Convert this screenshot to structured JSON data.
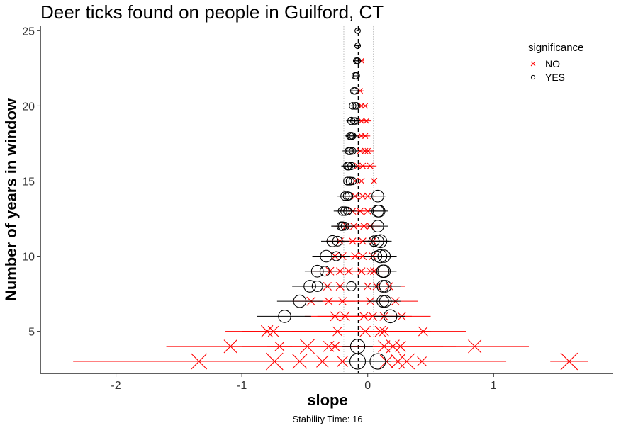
{
  "chart_data": {
    "type": "scatter",
    "title": "Deer ticks found on people in Guilford, CT",
    "xlabel": "slope",
    "ylabel": "Number of years in window",
    "caption": "Stability Time: 16",
    "xlim": [
      -2.6,
      1.95
    ],
    "ylim": [
      2.2,
      25.3
    ],
    "xticks": [
      -2,
      -1,
      0,
      1
    ],
    "xtick_labels": [
      "-2",
      "-1",
      "0",
      "1"
    ],
    "yticks": [
      5,
      10,
      15,
      20,
      25
    ],
    "ytick_labels": [
      "5",
      "10",
      "15",
      "20",
      "25"
    ],
    "reference_lines": {
      "dashed": -0.075,
      "dotted": [
        -0.19,
        0.045
      ]
    },
    "grid": false,
    "legend": {
      "title": "significance",
      "position": "top-right",
      "entries": [
        {
          "label": "NO",
          "marker": "x",
          "color": "#ff0000"
        },
        {
          "label": "YES",
          "marker": "o",
          "color": "#000000"
        }
      ]
    },
    "series": [
      {
        "name": "NO",
        "color": "#ff0000",
        "marker": "x",
        "points": [
          [
            -1.34,
            3,
            1.0,
            -2.34,
            -0.34
          ],
          [
            -0.74,
            3,
            1.1,
            -1.74,
            0.26
          ],
          [
            -0.54,
            3,
            0.9,
            -1.34,
            0.26
          ],
          [
            -0.36,
            3,
            0.7,
            -1.0,
            0.28
          ],
          [
            -0.2,
            3,
            0.6,
            -0.8,
            0.4
          ],
          [
            0.15,
            3,
            0.8,
            -0.6,
            0.9
          ],
          [
            0.24,
            3,
            0.9,
            -0.5,
            1.0
          ],
          [
            0.31,
            3,
            1.0,
            -0.4,
            1.1
          ],
          [
            0.43,
            3,
            0.5,
            -0.1,
            1.0
          ],
          [
            1.6,
            3,
            1.1,
            1.45,
            1.75
          ],
          [
            -1.09,
            4,
            0.8,
            -1.6,
            -0.6
          ],
          [
            -0.7,
            4,
            0.5,
            -1.1,
            -0.3
          ],
          [
            -0.48,
            4,
            0.9,
            -1.0,
            0.0
          ],
          [
            -0.31,
            4,
            0.6,
            -0.8,
            0.2
          ],
          [
            -0.26,
            4,
            0.5,
            -0.7,
            0.2
          ],
          [
            0.13,
            4,
            0.7,
            -0.3,
            0.6
          ],
          [
            0.2,
            4,
            0.8,
            -0.2,
            0.7
          ],
          [
            0.26,
            4,
            0.6,
            -0.2,
            0.8
          ],
          [
            0.85,
            4,
            0.8,
            0.3,
            1.28
          ],
          [
            -0.8,
            5,
            0.7,
            -1.13,
            -0.3
          ],
          [
            -0.75,
            5,
            0.6,
            -1.0,
            -0.2
          ],
          [
            -0.24,
            5,
            0.5,
            -0.6,
            0.2
          ],
          [
            -0.02,
            5,
            0.6,
            -0.3,
            0.3
          ],
          [
            0.1,
            5,
            0.6,
            -0.2,
            0.4
          ],
          [
            0.13,
            5,
            0.5,
            -0.2,
            0.5
          ],
          [
            0.44,
            5,
            0.5,
            0.1,
            0.78
          ],
          [
            -0.26,
            6,
            0.5,
            -0.5,
            0.1
          ],
          [
            -0.18,
            6,
            0.5,
            -0.4,
            0.15
          ],
          [
            -0.03,
            6,
            0.45,
            -0.3,
            0.2
          ],
          [
            0.04,
            6,
            0.45,
            -0.2,
            0.25
          ],
          [
            0.13,
            6,
            0.45,
            -0.1,
            0.35
          ],
          [
            0.27,
            6,
            0.4,
            0.0,
            0.5
          ],
          [
            -0.45,
            7,
            0.45,
            -0.6,
            -0.2
          ],
          [
            -0.31,
            7,
            0.4,
            -0.5,
            -0.1
          ],
          [
            -0.2,
            7,
            0.4,
            -0.4,
            0.0
          ],
          [
            0.02,
            7,
            0.4,
            -0.2,
            0.2
          ],
          [
            0.22,
            7,
            0.4,
            0.05,
            0.4
          ],
          [
            -0.32,
            8,
            0.4,
            -0.5,
            -0.15
          ],
          [
            -0.22,
            8,
            0.4,
            -0.4,
            -0.05
          ],
          [
            0.0,
            8,
            0.35,
            -0.2,
            0.2
          ],
          [
            0.07,
            8,
            0.35,
            -0.1,
            0.25
          ],
          [
            0.17,
            8,
            0.35,
            0.0,
            0.3
          ],
          [
            -0.3,
            9,
            0.4,
            -0.45,
            -0.15
          ],
          [
            -0.22,
            9,
            0.35,
            -0.35,
            -0.05
          ],
          [
            -0.15,
            9,
            0.35,
            -0.3,
            0.0
          ],
          [
            -0.05,
            9,
            0.35,
            -0.2,
            0.1
          ],
          [
            0.02,
            9,
            0.35,
            -0.1,
            0.15
          ],
          [
            0.05,
            9,
            0.35,
            -0.1,
            0.18
          ],
          [
            -0.26,
            10,
            0.35,
            -0.38,
            -0.12
          ],
          [
            -0.2,
            10,
            0.35,
            -0.32,
            -0.07
          ],
          [
            -0.1,
            10,
            0.35,
            -0.22,
            0.02
          ],
          [
            -0.04,
            10,
            0.35,
            -0.16,
            0.08
          ],
          [
            0.04,
            10,
            0.35,
            -0.08,
            0.14
          ],
          [
            -0.22,
            11,
            0.3,
            -0.33,
            -0.1
          ],
          [
            -0.12,
            11,
            0.3,
            -0.23,
            0.0
          ],
          [
            -0.04,
            11,
            0.3,
            -0.15,
            0.06
          ],
          [
            0.04,
            11,
            0.3,
            -0.06,
            0.14
          ],
          [
            -0.17,
            12,
            0.3,
            -0.27,
            -0.07
          ],
          [
            -0.11,
            12,
            0.3,
            -0.2,
            -0.02
          ],
          [
            -0.03,
            12,
            0.3,
            -0.12,
            0.05
          ],
          [
            0.02,
            12,
            0.3,
            -0.06,
            0.1
          ],
          [
            -0.12,
            13,
            0.3,
            -0.22,
            -0.03
          ],
          [
            -0.06,
            13,
            0.3,
            -0.14,
            0.02
          ],
          [
            0.0,
            13,
            0.3,
            -0.08,
            0.07
          ],
          [
            -0.1,
            14,
            0.28,
            -0.18,
            -0.02
          ],
          [
            -0.04,
            14,
            0.28,
            -0.11,
            0.03
          ],
          [
            0.0,
            14,
            0.28,
            -0.07,
            0.07
          ],
          [
            -0.1,
            15,
            0.25,
            -0.16,
            -0.03
          ],
          [
            -0.05,
            15,
            0.25,
            -0.11,
            0.01
          ],
          [
            0.05,
            15,
            0.25,
            0.0,
            0.1
          ],
          [
            -0.08,
            16,
            0.25,
            -0.14,
            -0.02
          ],
          [
            -0.04,
            16,
            0.25,
            -0.1,
            0.02
          ],
          [
            0.02,
            16,
            0.25,
            -0.03,
            0.07
          ],
          [
            -0.06,
            17,
            0.22,
            -0.12,
            0.0
          ],
          [
            -0.02,
            17,
            0.22,
            -0.06,
            0.03
          ],
          [
            0.0,
            17,
            0.22,
            -0.05,
            0.05
          ],
          [
            -0.05,
            18,
            0.2,
            -0.1,
            0.0
          ],
          [
            -0.02,
            18,
            0.2,
            -0.06,
            0.02
          ],
          [
            -0.05,
            19,
            0.2,
            -0.09,
            -0.01
          ],
          [
            -0.01,
            19,
            0.2,
            -0.05,
            0.03
          ],
          [
            -0.05,
            20,
            0.18,
            -0.08,
            -0.02
          ],
          [
            -0.02,
            20,
            0.18,
            -0.05,
            0.01
          ],
          [
            -0.06,
            21,
            0.18,
            -0.09,
            -0.03
          ],
          [
            -0.05,
            23,
            0.15,
            -0.07,
            -0.03
          ]
        ]
      },
      {
        "name": "YES",
        "color": "#000000",
        "marker": "o",
        "points": [
          [
            -0.08,
            3,
            1.0,
            -0.18,
            0.02
          ],
          [
            0.08,
            3,
            1.0,
            -0.02,
            0.18
          ],
          [
            -0.08,
            4,
            0.9,
            -0.2,
            0.04
          ],
          [
            0.18,
            6,
            0.8,
            0.05,
            0.3
          ],
          [
            -0.66,
            6,
            0.75,
            -0.88,
            -0.45
          ],
          [
            -0.54,
            7,
            0.75,
            -0.72,
            -0.36
          ],
          [
            0.12,
            7,
            0.7,
            0.0,
            0.24
          ],
          [
            0.14,
            7,
            0.7,
            0.02,
            0.26
          ],
          [
            -0.46,
            8,
            0.7,
            -0.6,
            -0.32
          ],
          [
            -0.4,
            8,
            0.6,
            -0.54,
            -0.26
          ],
          [
            -0.13,
            8,
            0.5,
            -0.25,
            -0.01
          ],
          [
            0.12,
            8,
            0.7,
            0.0,
            0.24
          ],
          [
            0.14,
            8,
            0.7,
            0.02,
            0.26
          ],
          [
            -0.4,
            9,
            0.7,
            -0.5,
            -0.3
          ],
          [
            -0.34,
            9,
            0.55,
            -0.44,
            -0.24
          ],
          [
            0.12,
            9,
            0.75,
            0.02,
            0.22
          ],
          [
            0.13,
            9,
            0.75,
            0.03,
            0.23
          ],
          [
            -0.33,
            10,
            0.7,
            -0.44,
            -0.22
          ],
          [
            -0.25,
            10,
            0.5,
            -0.36,
            -0.14
          ],
          [
            0.1,
            10,
            0.8,
            0.0,
            0.2
          ],
          [
            0.13,
            10,
            0.75,
            0.03,
            0.23
          ],
          [
            0.07,
            10,
            0.6,
            -0.03,
            0.17
          ],
          [
            -0.28,
            11,
            0.65,
            -0.37,
            -0.19
          ],
          [
            -0.24,
            11,
            0.55,
            -0.33,
            -0.15
          ],
          [
            0.1,
            11,
            0.8,
            0.01,
            0.19
          ],
          [
            0.05,
            11,
            0.6,
            -0.04,
            0.14
          ],
          [
            0.08,
            11,
            0.7,
            -0.01,
            0.17
          ],
          [
            -0.21,
            12,
            0.45,
            -0.29,
            -0.13
          ],
          [
            -0.2,
            12,
            0.45,
            -0.28,
            -0.12
          ],
          [
            -0.18,
            12,
            0.4,
            -0.26,
            -0.1
          ],
          [
            0.08,
            12,
            0.7,
            0.0,
            0.16
          ],
          [
            -0.2,
            13,
            0.45,
            -0.27,
            -0.13
          ],
          [
            -0.18,
            13,
            0.45,
            -0.25,
            -0.11
          ],
          [
            -0.16,
            13,
            0.4,
            -0.23,
            -0.09
          ],
          [
            0.08,
            13,
            0.7,
            0.01,
            0.15
          ],
          [
            0.09,
            13,
            0.7,
            0.02,
            0.16
          ],
          [
            -0.18,
            14,
            0.45,
            -0.24,
            -0.12
          ],
          [
            -0.16,
            14,
            0.45,
            -0.22,
            -0.1
          ],
          [
            -0.15,
            14,
            0.4,
            -0.21,
            -0.09
          ],
          [
            0.08,
            14,
            0.7,
            0.02,
            0.14
          ],
          [
            -0.16,
            15,
            0.4,
            -0.22,
            -0.1
          ],
          [
            -0.14,
            15,
            0.4,
            -0.2,
            -0.08
          ],
          [
            -0.12,
            15,
            0.35,
            -0.18,
            -0.06
          ],
          [
            -0.16,
            16,
            0.4,
            -0.21,
            -0.11
          ],
          [
            -0.15,
            16,
            0.4,
            -0.2,
            -0.1
          ],
          [
            -0.13,
            16,
            0.35,
            -0.18,
            -0.08
          ],
          [
            -0.15,
            17,
            0.35,
            -0.2,
            -0.1
          ],
          [
            -0.14,
            17,
            0.35,
            -0.19,
            -0.09
          ],
          [
            -0.12,
            17,
            0.3,
            -0.17,
            -0.07
          ],
          [
            -0.14,
            18,
            0.35,
            -0.18,
            -0.1
          ],
          [
            -0.13,
            18,
            0.35,
            -0.17,
            -0.09
          ],
          [
            -0.12,
            18,
            0.3,
            -0.16,
            -0.08
          ],
          [
            -0.13,
            19,
            0.35,
            -0.17,
            -0.09
          ],
          [
            -0.11,
            19,
            0.3,
            -0.15,
            -0.07
          ],
          [
            -0.1,
            19,
            0.3,
            -0.14,
            -0.06
          ],
          [
            -0.12,
            20,
            0.3,
            -0.15,
            -0.09
          ],
          [
            -0.1,
            20,
            0.3,
            -0.13,
            -0.07
          ],
          [
            -0.09,
            20,
            0.3,
            -0.12,
            -0.06
          ],
          [
            -0.11,
            21,
            0.3,
            -0.14,
            -0.08
          ],
          [
            -0.1,
            21,
            0.3,
            -0.13,
            -0.07
          ],
          [
            -0.1,
            22,
            0.28,
            -0.12,
            -0.08
          ],
          [
            -0.09,
            22,
            0.28,
            -0.11,
            -0.07
          ],
          [
            -0.09,
            23,
            0.25,
            -0.11,
            -0.07
          ],
          [
            -0.08,
            23,
            0.25,
            -0.1,
            -0.06
          ],
          [
            -0.08,
            24,
            0.22,
            -0.1,
            -0.06
          ],
          [
            -0.08,
            25,
            0.2,
            -0.09,
            -0.07
          ]
        ]
      }
    ],
    "point_fields": [
      "slope",
      "years",
      "weight",
      "ci_low",
      "ci_high"
    ]
  }
}
